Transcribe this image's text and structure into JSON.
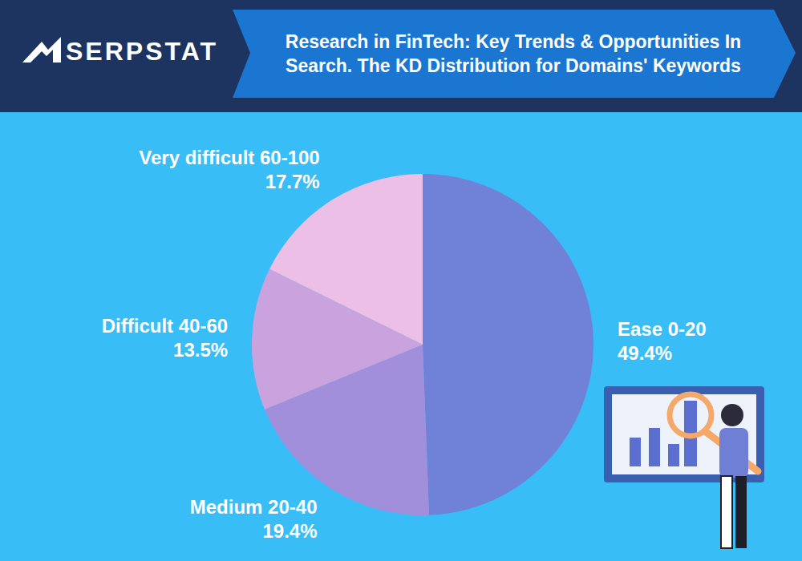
{
  "chart_data": {
    "type": "pie",
    "title": "Research in FinTech: Key Trends & Opportunities In Search. The KD Distribution for Domains' Keywords",
    "annotations": [
      "SERPSTAT"
    ],
    "categories": [
      "Ease 0-20",
      "Medium 20-40",
      "Difficult 40-60",
      "Very difficult 60-100"
    ],
    "values": [
      49.4,
      19.4,
      13.5,
      17.7
    ],
    "value_labels": [
      "49.4%",
      "19.4%",
      "13.5%",
      "17.7%"
    ],
    "colors": [
      "#6f82d8",
      "#a28fdc",
      "#caa2dd",
      "#ecc0e6"
    ],
    "data_labels": true
  }
}
